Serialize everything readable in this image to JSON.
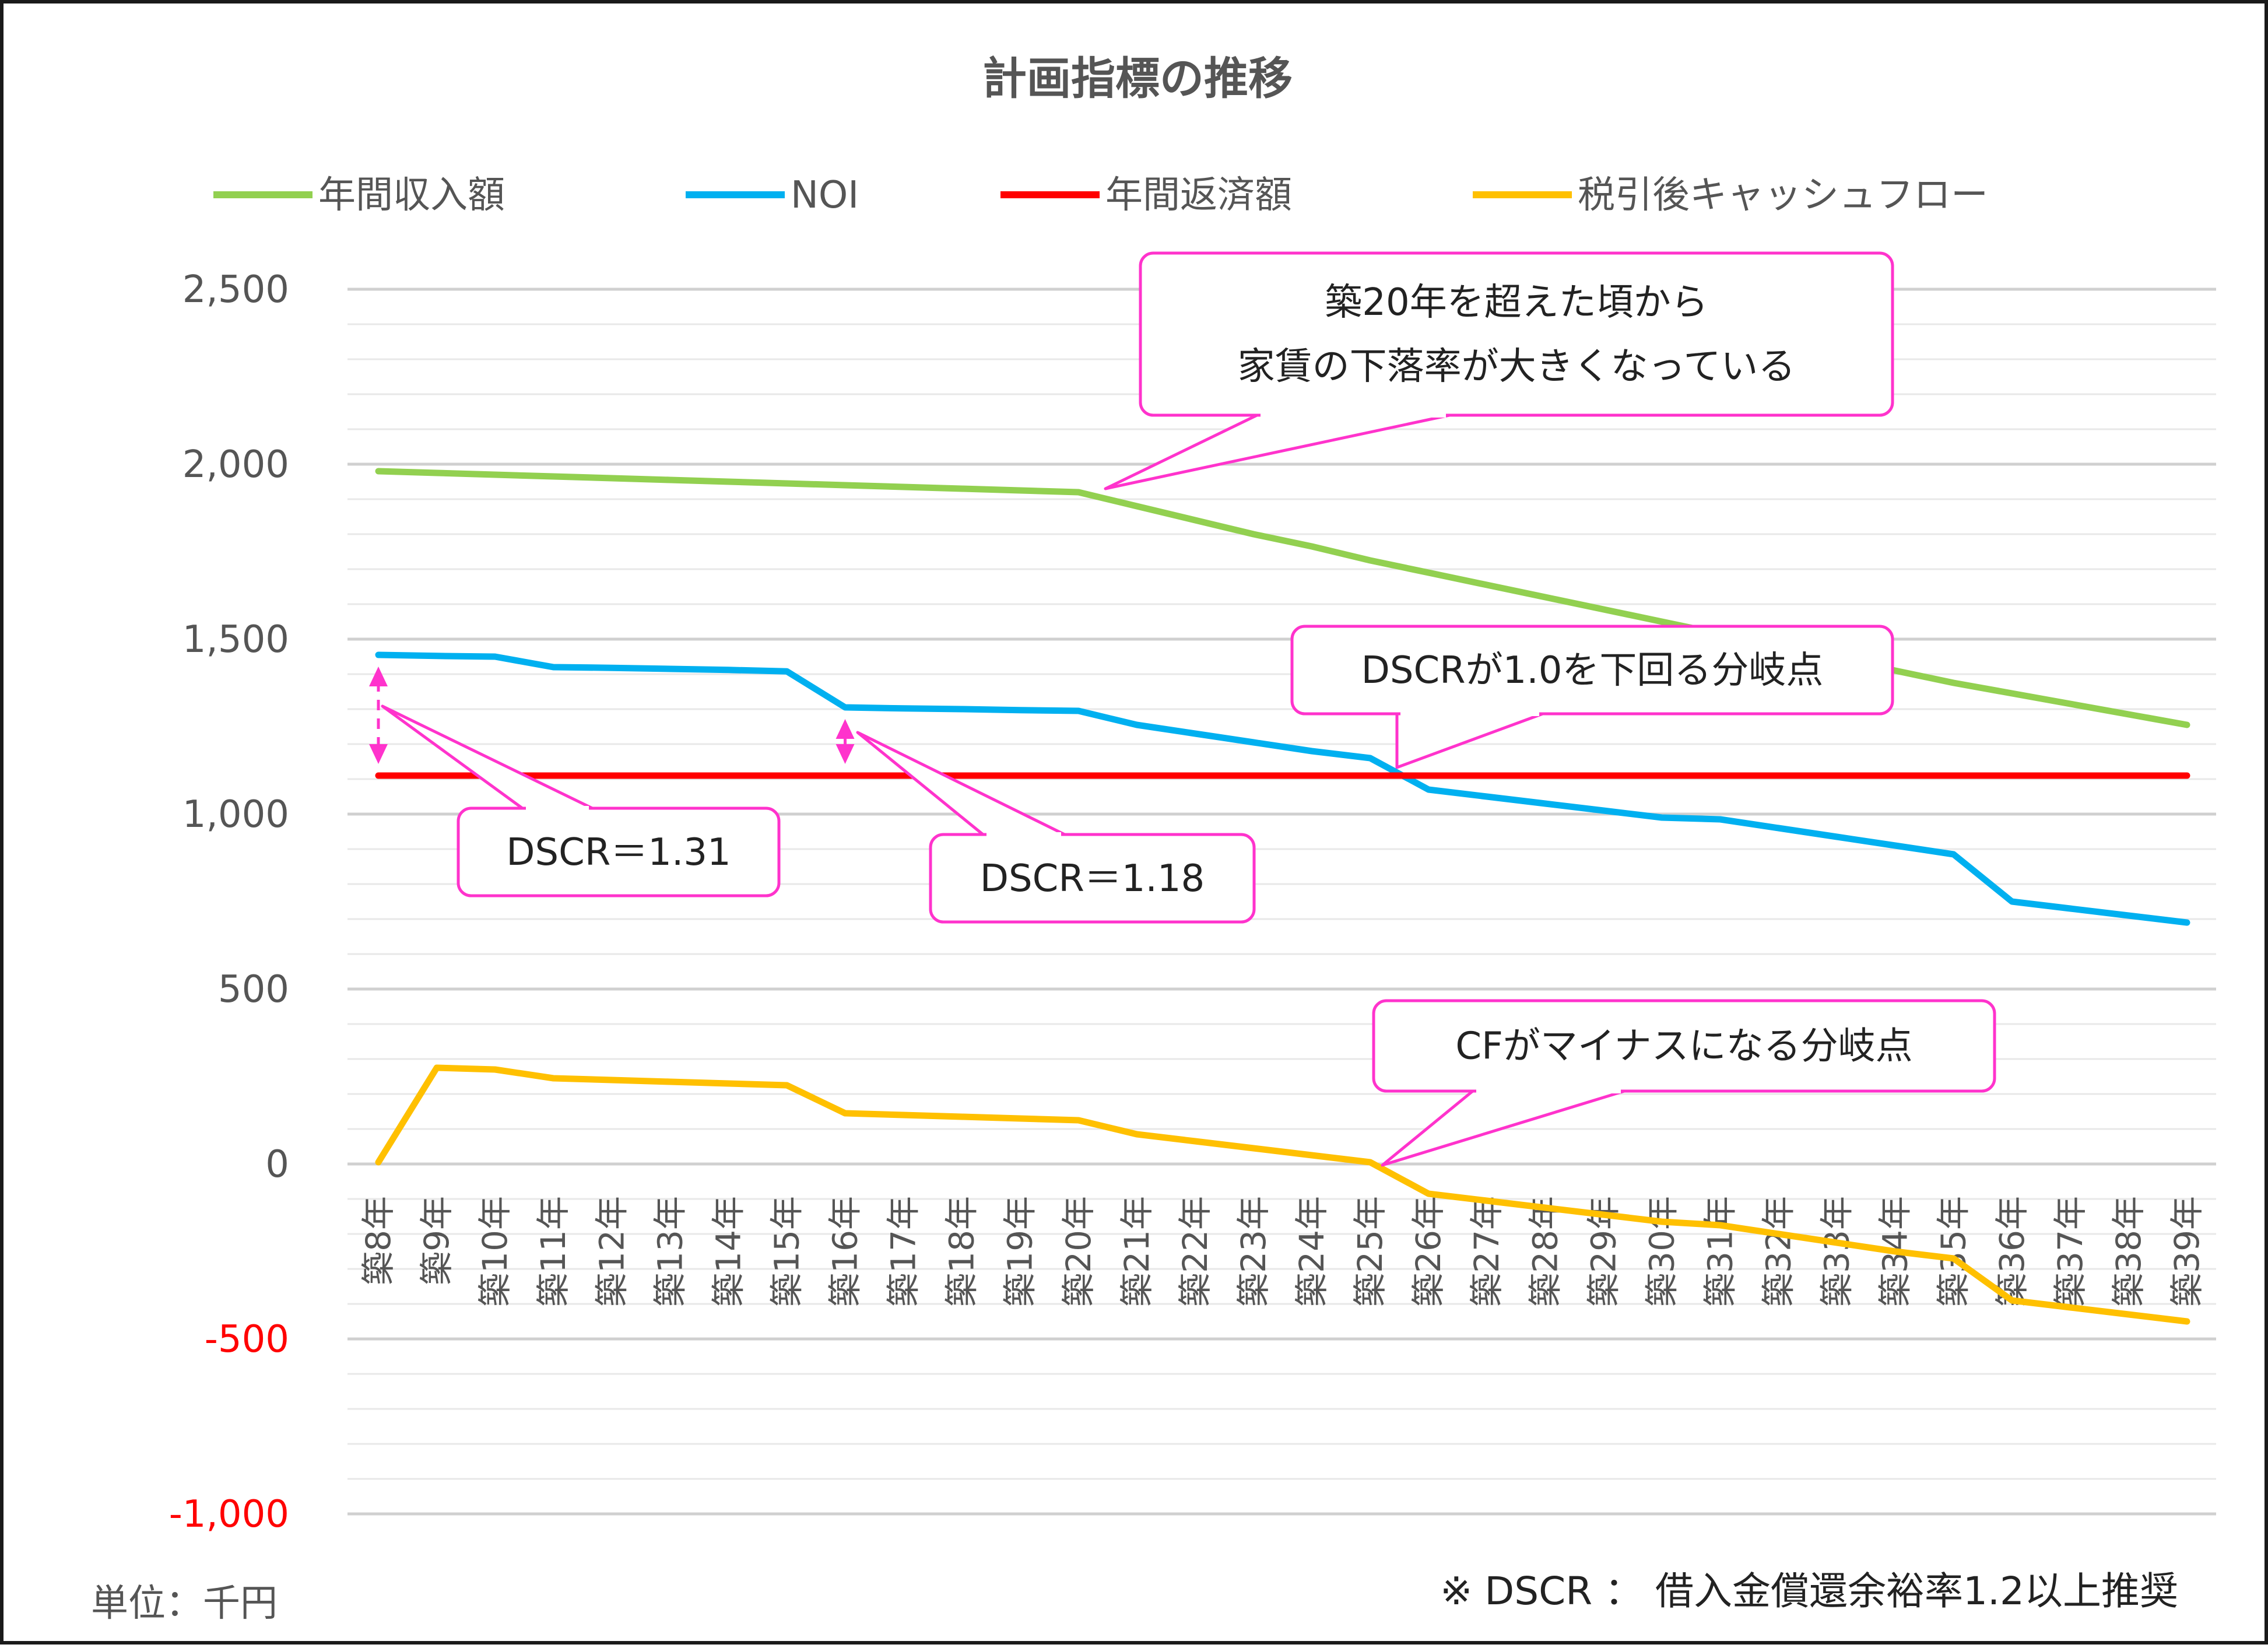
{
  "chart_data": {
    "type": "line",
    "title": "計画指標の推移",
    "x": [
      "築8年",
      "築9年",
      "築10年",
      "築11年",
      "築12年",
      "築13年",
      "築14年",
      "築15年",
      "築16年",
      "築17年",
      "築18年",
      "築19年",
      "築20年",
      "築21年",
      "築22年",
      "築23年",
      "築24年",
      "築25年",
      "築26年",
      "築27年",
      "築28年",
      "築29年",
      "築30年",
      "築31年",
      "築32年",
      "築33年",
      "築34年",
      "築35年",
      "築36年",
      "築37年",
      "築38年",
      "築39年"
    ],
    "yticks": [
      "2,500",
      "2,000",
      "1,500",
      "1,000",
      "500",
      "0",
      "-500",
      "-1,000"
    ],
    "ylim": [
      -1000,
      2500
    ],
    "grid": true,
    "legend_position": "top",
    "series": [
      {
        "name": "年間収入額",
        "color": "#92d050",
        "values": [
          1980,
          1975,
          1970,
          1965,
          1960,
          1955,
          1950,
          1945,
          1940,
          1935,
          1930,
          1925,
          1920,
          1880,
          1840,
          1800,
          1765,
          1725,
          1690,
          1655,
          1620,
          1585,
          1550,
          1515,
          1480,
          1445,
          1410,
          1375,
          1345,
          1315,
          1285,
          1255
        ]
      },
      {
        "name": "NOI",
        "color": "#00b0f0",
        "values": [
          1455,
          1452,
          1450,
          1420,
          1418,
          1415,
          1412,
          1408,
          1305,
          1302,
          1300,
          1297,
          1295,
          1255,
          1230,
          1205,
          1180,
          1160,
          1070,
          1050,
          1030,
          1010,
          990,
          985,
          960,
          935,
          910,
          885,
          750,
          730,
          710,
          690
        ]
      },
      {
        "name": "年間返済額",
        "color": "#ff0000",
        "values": [
          1110,
          1110,
          1110,
          1110,
          1110,
          1110,
          1110,
          1110,
          1110,
          1110,
          1110,
          1110,
          1110,
          1110,
          1110,
          1110,
          1110,
          1110,
          1110,
          1110,
          1110,
          1110,
          1110,
          1110,
          1110,
          1110,
          1110,
          1110,
          1110,
          1110,
          1110,
          1110
        ]
      },
      {
        "name": "税引後キャッシュフロー",
        "color": "#ffc000",
        "values": [
          5,
          275,
          270,
          245,
          240,
          235,
          230,
          225,
          145,
          140,
          135,
          130,
          125,
          85,
          65,
          45,
          25,
          5,
          -85,
          -105,
          -125,
          -145,
          -165,
          -175,
          -200,
          -225,
          -250,
          -270,
          -390,
          -410,
          -430,
          -450
        ]
      }
    ],
    "annotations": [
      {
        "id": "note-20yr",
        "lines": [
          "築20年を超えた頃から",
          "家賃の下落率が大きくなっている"
        ]
      },
      {
        "id": "note-dscr-break",
        "lines": [
          "DSCRが1.0を下回る分岐点"
        ]
      },
      {
        "id": "note-dscr-131",
        "lines": [
          "DSCR＝1.31"
        ]
      },
      {
        "id": "note-dscr-118",
        "lines": [
          "DSCR＝1.18"
        ]
      },
      {
        "id": "note-cf-break",
        "lines": [
          "CFがマイナスになる分岐点"
        ]
      }
    ]
  },
  "footer": {
    "unit": "単位：千円",
    "note": "※ DSCR ： 借入金償還余裕率1.2以上推奨"
  }
}
